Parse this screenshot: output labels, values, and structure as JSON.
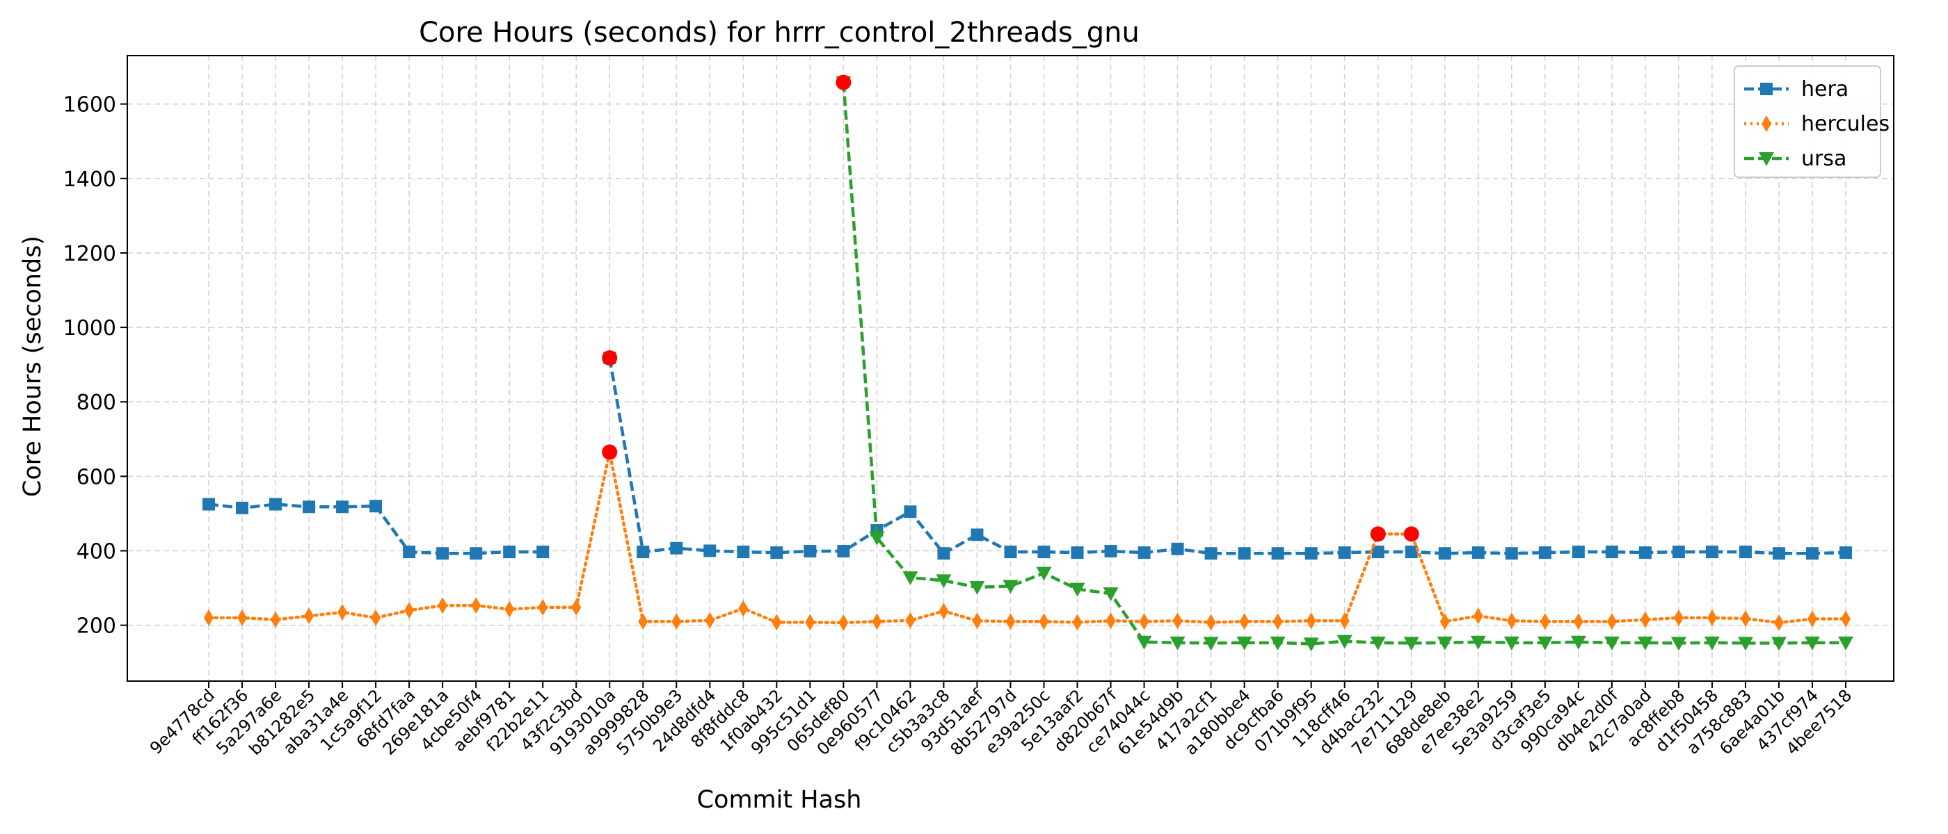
{
  "chart_data": {
    "type": "line",
    "title": "Core Hours (seconds) for hrrr_control_2threads_gnu",
    "xlabel": "Commit Hash",
    "ylabel": "Core Hours (seconds)",
    "ylim": [
      50,
      1730
    ],
    "yticks": [
      200,
      400,
      600,
      800,
      1000,
      1200,
      1400,
      1600
    ],
    "grid": true,
    "legend_position": "top-right",
    "categories": [
      "9e4778cd",
      "ff162f36",
      "5a297a6e",
      "b81282e5",
      "aba31a4e",
      "1c5a9f12",
      "68fd7faa",
      "269e181a",
      "4cbe50f4",
      "aebf9781",
      "f22b2e11",
      "43f2c3bd",
      "9193010a",
      "a9999828",
      "5750b9e3",
      "24d8dfd4",
      "8f8fddc8",
      "1f0ab432",
      "995c51d1",
      "065def80",
      "0e960577",
      "f9c10462",
      "c5b3a3c8",
      "93d51aef",
      "8b52797d",
      "e39a250c",
      "5e13aaf2",
      "d820b67f",
      "ce74044c",
      "61e54d9b",
      "417a2cf1",
      "a180bbe4",
      "dc9cfba6",
      "071b9f95",
      "118cff46",
      "d4bac232",
      "7e711129",
      "688de8eb",
      "e7ee38e2",
      "5e3a9259",
      "d3caf3e5",
      "990ca94c",
      "db4e2d0f",
      "42c7a0ad",
      "ac8ffeb8",
      "d1f50458",
      "a758c883",
      "6ae4a01b",
      "437cf974",
      "4bee7518"
    ],
    "series": [
      {
        "name": "hera",
        "color": "#1f77b4",
        "marker": "square",
        "linestyle": "dashed",
        "values": [
          525,
          515,
          525,
          518,
          518,
          520,
          397,
          393,
          393,
          397,
          397,
          null,
          918,
          397,
          407,
          400,
          397,
          395,
          399,
          399,
          455,
          505,
          393,
          443,
          397,
          397,
          395,
          399,
          395,
          405,
          393,
          393,
          393,
          393,
          395,
          397,
          397,
          393,
          395,
          393,
          395,
          397,
          397,
          395,
          397,
          397,
          397,
          393,
          393,
          395
        ]
      },
      {
        "name": "hercules",
        "color": "#ff7f0e",
        "marker": "thin_diamond",
        "linestyle": "dotted",
        "values": [
          220,
          220,
          215,
          225,
          235,
          220,
          240,
          253,
          253,
          243,
          248,
          248,
          665,
          210,
          210,
          213,
          245,
          208,
          208,
          207,
          210,
          213,
          238,
          212,
          210,
          210,
          208,
          212,
          210,
          212,
          208,
          210,
          210,
          212,
          212,
          445,
          445,
          210,
          225,
          212,
          210,
          210,
          210,
          215,
          220,
          220,
          218,
          207,
          217,
          217
        ]
      },
      {
        "name": "ursa",
        "color": "#2ca02c",
        "marker": "triangle_down",
        "linestyle": "dashed",
        "values": [
          null,
          null,
          null,
          null,
          null,
          null,
          null,
          null,
          null,
          null,
          null,
          null,
          null,
          null,
          null,
          null,
          null,
          null,
          null,
          1658,
          435,
          328,
          320,
          302,
          305,
          340,
          297,
          285,
          155,
          153,
          152,
          153,
          153,
          150,
          157,
          153,
          152,
          153,
          155,
          153,
          153,
          155,
          153,
          153,
          152,
          153,
          152,
          152,
          153,
          153
        ]
      }
    ],
    "highlight_points": [
      {
        "series": "hera",
        "category": "9193010a",
        "value": 918
      },
      {
        "series": "hercules",
        "category": "9193010a",
        "value": 665
      },
      {
        "series": "ursa",
        "category": "065def80",
        "value": 1658
      },
      {
        "series": "hercules",
        "category": "d4bac232",
        "value": 445
      },
      {
        "series": "hercules",
        "category": "7e711129",
        "value": 445
      }
    ],
    "highlight_color": "#ff0000"
  }
}
